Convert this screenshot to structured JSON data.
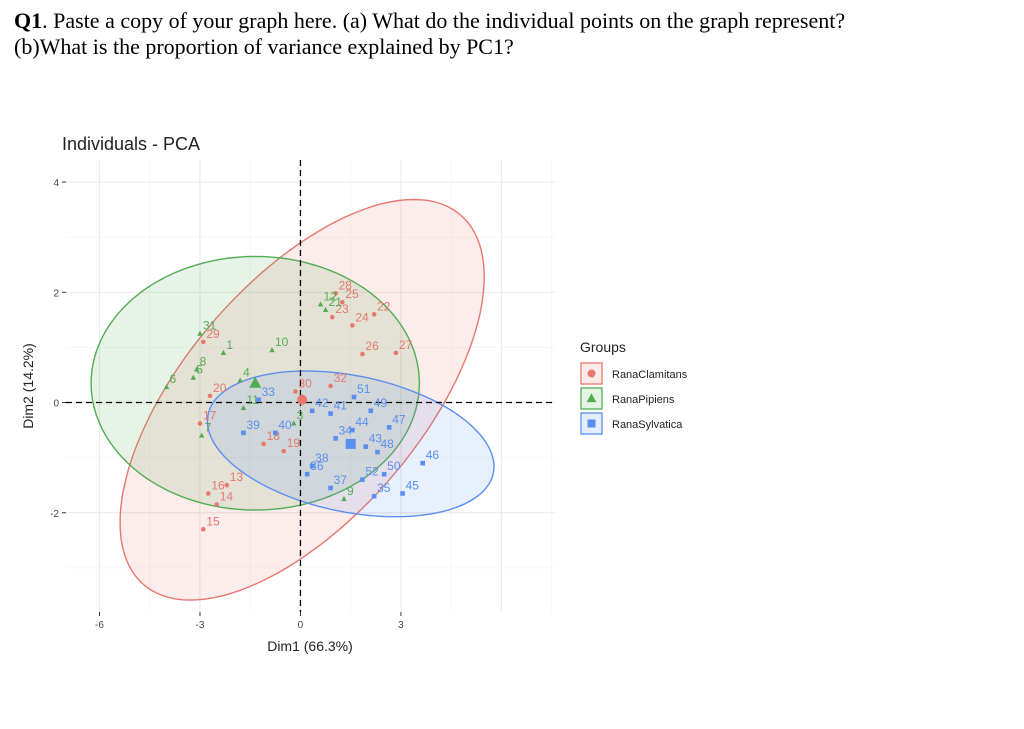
{
  "question": {
    "number": "Q1",
    "text": ". Paste a copy of your graph here. (a) What do the individual points on the graph represent?",
    "text_line2": "(b)What is the proportion of variance explained by PC1?"
  },
  "chart_data": {
    "type": "scatter",
    "title": "Individuals - PCA",
    "xlabel": "Dim1 (66.3%)",
    "ylabel": "Dim2 (14.2%)",
    "xlim": [
      -7,
      7.6
    ],
    "ylim": [
      -3.8,
      4.4
    ],
    "xticks": [
      -6,
      -3,
      0,
      3
    ],
    "yticks": [
      -2,
      0,
      2,
      4
    ],
    "grid": true,
    "legend": {
      "title": "Groups",
      "placement": "right"
    },
    "colors": {
      "RanaClamitans": "#e8776e",
      "RanaPipiens": "#52ad52",
      "RanaSylvatica": "#5a8ff0"
    },
    "series": [
      {
        "name": "RanaClamitans",
        "marker": "circle",
        "points": [
          {
            "label": "28",
            "x": 1.05,
            "y": 1.98
          },
          {
            "label": "25",
            "x": 1.25,
            "y": 1.82
          },
          {
            "label": "22",
            "x": 2.2,
            "y": 1.6
          },
          {
            "label": "23",
            "x": 0.95,
            "y": 1.55
          },
          {
            "label": "24",
            "x": 1.55,
            "y": 1.4
          },
          {
            "label": "27",
            "x": 2.85,
            "y": 0.9
          },
          {
            "label": "26",
            "x": 1.85,
            "y": 0.88
          },
          {
            "label": "29",
            "x": -2.9,
            "y": 1.1
          },
          {
            "label": "30",
            "x": -0.15,
            "y": 0.2
          },
          {
            "label": "32",
            "x": 0.9,
            "y": 0.3
          },
          {
            "label": "20",
            "x": -2.7,
            "y": 0.12
          },
          {
            "label": "17",
            "x": -3.0,
            "y": -0.38
          },
          {
            "label": "19",
            "x": -0.5,
            "y": -0.88
          },
          {
            "label": "18",
            "x": -1.1,
            "y": -0.75
          },
          {
            "label": "13",
            "x": -2.2,
            "y": -1.5
          },
          {
            "label": "16",
            "x": -2.75,
            "y": -1.65
          },
          {
            "label": "14",
            "x": -2.5,
            "y": -1.85
          },
          {
            "label": "15",
            "x": -2.9,
            "y": -2.3
          }
        ]
      },
      {
        "name": "RanaPipiens",
        "marker": "triangle",
        "points": [
          {
            "label": "12",
            "x": 0.6,
            "y": 1.78
          },
          {
            "label": "21",
            "x": 0.75,
            "y": 1.68
          },
          {
            "label": "31",
            "x": -3.0,
            "y": 1.25
          },
          {
            "label": "10",
            "x": -0.85,
            "y": 0.95
          },
          {
            "label": "1",
            "x": -2.3,
            "y": 0.9
          },
          {
            "label": "8",
            "x": -3.1,
            "y": 0.6
          },
          {
            "label": "5",
            "x": -3.2,
            "y": 0.45
          },
          {
            "label": "4",
            "x": -1.8,
            "y": 0.4
          },
          {
            "label": "6",
            "x": -4.0,
            "y": 0.28
          },
          {
            "label": "11",
            "x": -1.7,
            "y": -0.1
          },
          {
            "label": "3",
            "x": -0.2,
            "y": -0.38
          },
          {
            "label": "7",
            "x": -2.95,
            "y": -0.6
          },
          {
            "label": "9",
            "x": 1.3,
            "y": -1.75
          }
        ]
      },
      {
        "name": "RanaSylvatica",
        "marker": "square",
        "points": [
          {
            "label": "51",
            "x": 1.6,
            "y": 0.1
          },
          {
            "label": "33",
            "x": -1.25,
            "y": 0.05
          },
          {
            "label": "42",
            "x": 0.35,
            "y": -0.15
          },
          {
            "label": "41",
            "x": 0.9,
            "y": -0.2
          },
          {
            "label": "49",
            "x": 2.1,
            "y": -0.15
          },
          {
            "label": "47",
            "x": 2.65,
            "y": -0.45
          },
          {
            "label": "44",
            "x": 1.55,
            "y": -0.5
          },
          {
            "label": "34",
            "x": 1.05,
            "y": -0.65
          },
          {
            "label": "39",
            "x": -1.7,
            "y": -0.55
          },
          {
            "label": "40",
            "x": -0.75,
            "y": -0.55
          },
          {
            "label": "43",
            "x": 1.95,
            "y": -0.8
          },
          {
            "label": "48",
            "x": 2.3,
            "y": -0.9
          },
          {
            "label": "46",
            "x": 3.65,
            "y": -1.1
          },
          {
            "label": "38",
            "x": 0.35,
            "y": -1.15
          },
          {
            "label": "36",
            "x": 0.2,
            "y": -1.3
          },
          {
            "label": "52",
            "x": 1.85,
            "y": -1.4
          },
          {
            "label": "50",
            "x": 2.5,
            "y": -1.3
          },
          {
            "label": "37",
            "x": 0.9,
            "y": -1.55
          },
          {
            "label": "35",
            "x": 2.2,
            "y": -1.7
          },
          {
            "label": "45",
            "x": 3.05,
            "y": -1.65
          }
        ]
      }
    ],
    "means": [
      {
        "group": "RanaClamitans",
        "x": 0.05,
        "y": 0.05
      },
      {
        "group": "RanaPipiens",
        "x": -1.35,
        "y": 0.35
      },
      {
        "group": "RanaSylvatica",
        "x": 1.5,
        "y": -0.75
      }
    ]
  }
}
